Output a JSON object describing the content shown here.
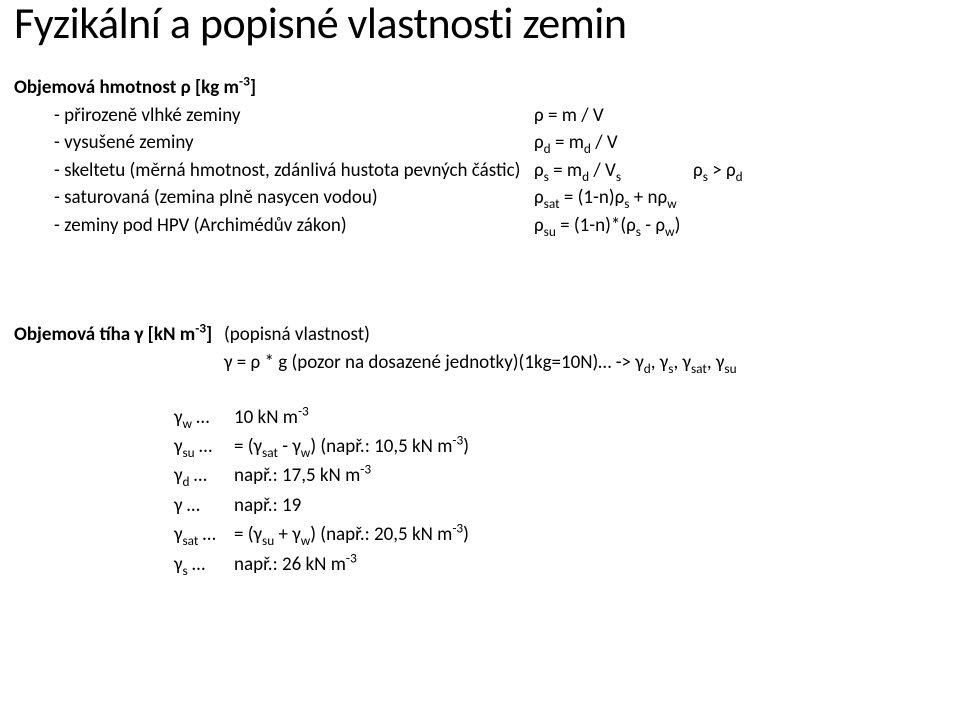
{
  "title": "Fyzikální a popisné vlastnosti zemin",
  "density_heading_plain": "Objemová hmotnost  ",
  "density_heading_sym": "ρ",
  "density_heading_unit_pre": " [kg m",
  "density_heading_unit_sup": "-3",
  "density_heading_unit_post": "]",
  "rows": [
    {
      "label": "- přirozeně vlhké zeminy",
      "val": "ρ = m / V",
      "extra": ""
    },
    {
      "label": "- vysušené zeminy",
      "val_html": "ρ<sub>d</sub> = m<sub>d</sub> / V"
    },
    {
      "label": "- skeltetu (měrná hmotnost, zdánlivá hustota pevných částic)",
      "val_html": "ρ<sub>s</sub> = m<sub>d</sub> / V<sub>s</sub>",
      "extra_html": "ρ<sub>s</sub> &gt; ρ<sub>d</sub>"
    },
    {
      "label": "- saturovaná (zemina plně nasycen vodou)",
      "val_html": "ρ<sub>sat</sub> = (1-n)ρ<sub>s</sub> + nρ<sub>w</sub>"
    },
    {
      "label": "- zeminy pod HPV (Archimédův zákon)",
      "val_html": "ρ<sub>su</sub> = (1-n)*(ρ<sub>s</sub> - ρ<sub>w</sub>)"
    }
  ],
  "weight_heading_plain": "Objemová tíha  ",
  "weight_heading_sym": "γ",
  "weight_heading_unit_pre": " [kN m",
  "weight_heading_unit_sup": "-3",
  "weight_heading_unit_post": "]",
  "weight_note": "(popisná vlastnost)",
  "weight_formula_pre": "γ = ρ * g (pozor na dosazené jednotky)(1kg=10N)… -> ",
  "weight_formula_syms_html": "γ<sub>d</sub>, γ<sub>s</sub>, γ<sub>sat</sub>, γ<sub>su</sub>",
  "gammas": [
    {
      "sym_html": "γ<sub>w</sub> …",
      "val_html": "10 kN m<sup>-3</sup>"
    },
    {
      "sym_html": "γ<sub>su</sub> …",
      "val_html": "= (γ<sub>sat</sub> - γ<sub>w</sub>) (např.: 10,5 kN m<sup>-3</sup>)"
    },
    {
      "sym_html": "γ<sub>d</sub> …",
      "val_html": "např.: 17,5 kN m<sup>-3</sup>"
    },
    {
      "sym_html": "γ …",
      "val_html": "např.: 19"
    },
    {
      "sym_html": "γ<sub>sat</sub> …",
      "val_html": "= (γ<sub>su</sub> + γ<sub>w</sub>) (např.: 20,5 kN m<sup>-3</sup>)"
    },
    {
      "sym_html": "γ<sub>s</sub> …",
      "val_html": "např.: 26 kN m<sup>-3</sup>"
    }
  ],
  "colors": {
    "text": "#000000",
    "bg": "#ffffff"
  }
}
